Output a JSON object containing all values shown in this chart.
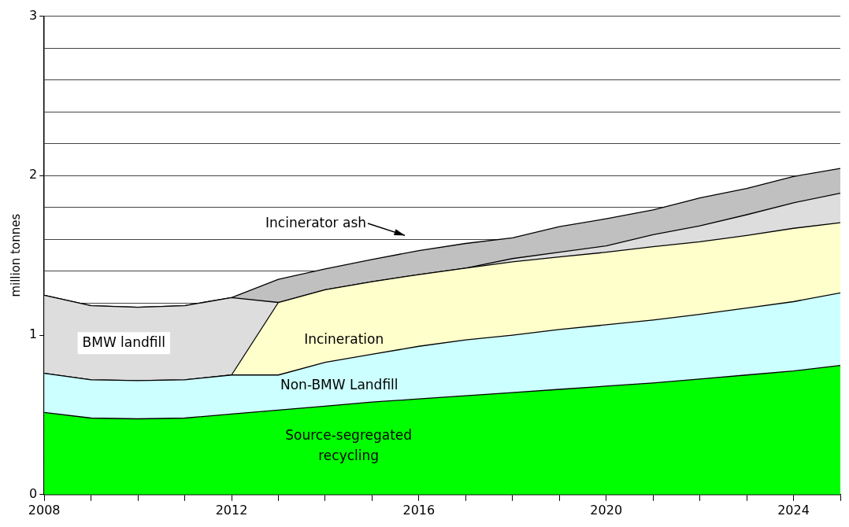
{
  "chart_data": {
    "type": "area",
    "stacked": true,
    "ylabel": "million tonnes",
    "x": [
      2008,
      2009,
      2010,
      2011,
      2012,
      2013,
      2014,
      2015,
      2016,
      2017,
      2018,
      2019,
      2020,
      2021,
      2022,
      2023,
      2024,
      2025
    ],
    "xlim": [
      2008,
      2025
    ],
    "xticks": [
      2008,
      {
        "value": 2009,
        "label": null
      },
      {
        "value": 2010,
        "label": null
      },
      {
        "value": 2011,
        "label": null
      },
      2012,
      {
        "value": 2013,
        "label": null
      },
      {
        "value": 2014,
        "label": null
      },
      {
        "value": 2015,
        "label": null
      },
      2016,
      {
        "value": 2017,
        "label": null
      },
      {
        "value": 2018,
        "label": null
      },
      {
        "value": 2019,
        "label": null
      },
      2020,
      {
        "value": 2021,
        "label": null
      },
      {
        "value": 2022,
        "label": null
      },
      {
        "value": 2023,
        "label": null
      },
      2024,
      {
        "value": 2025,
        "label": null
      }
    ],
    "ylim": [
      0,
      3
    ],
    "yticks": [
      0,
      {
        "value": 0.2,
        "label": null
      },
      {
        "value": 0.4,
        "label": null
      },
      {
        "value": 0.6,
        "label": null
      },
      {
        "value": 0.8,
        "label": null
      },
      1,
      {
        "value": 1.2,
        "label": null
      },
      {
        "value": 1.4,
        "label": null
      },
      {
        "value": 1.6,
        "label": null
      },
      {
        "value": 1.8,
        "label": null
      },
      2,
      {
        "value": 2.2,
        "label": null
      },
      {
        "value": 2.4,
        "label": null
      },
      {
        "value": 2.6,
        "label": null
      },
      {
        "value": 2.8,
        "label": null
      },
      3
    ],
    "grid": "y",
    "series": [
      {
        "name": "Source-segregated recycling",
        "color": "#00ff00",
        "values": [
          0.515,
          0.48,
          0.475,
          0.48,
          0.505,
          0.53,
          0.555,
          0.58,
          0.6,
          0.62,
          0.64,
          0.66,
          0.68,
          0.7,
          0.725,
          0.75,
          0.775,
          0.81
        ]
      },
      {
        "name": "Non-BMW Landfill",
        "color": "#ccffff",
        "values": [
          0.245,
          0.24,
          0.24,
          0.24,
          0.245,
          0.22,
          0.275,
          0.3,
          0.33,
          0.35,
          0.36,
          0.375,
          0.385,
          0.395,
          0.405,
          0.42,
          0.435,
          0.455
        ]
      },
      {
        "name": "Incineration",
        "color": "#ffffcc",
        "values": [
          0,
          0,
          0,
          0,
          0,
          0.455,
          0.455,
          0.455,
          0.45,
          0.45,
          0.46,
          0.455,
          0.455,
          0.46,
          0.455,
          0.455,
          0.46,
          0.44
        ]
      },
      {
        "name": "BMW landfill",
        "color": "#dddddd",
        "values": [
          0.49,
          0.465,
          0.46,
          0.465,
          0.485,
          0,
          0,
          0,
          0,
          0,
          0.02,
          0.03,
          0.04,
          0.075,
          0.1,
          0.13,
          0.16,
          0.185
        ]
      },
      {
        "name": "Incinerator ash",
        "color": "#c0c0c0",
        "values": [
          0,
          0,
          0,
          0,
          0,
          0.145,
          0.13,
          0.14,
          0.15,
          0.155,
          0.13,
          0.16,
          0.17,
          0.155,
          0.175,
          0.165,
          0.165,
          0.155
        ]
      }
    ]
  }
}
